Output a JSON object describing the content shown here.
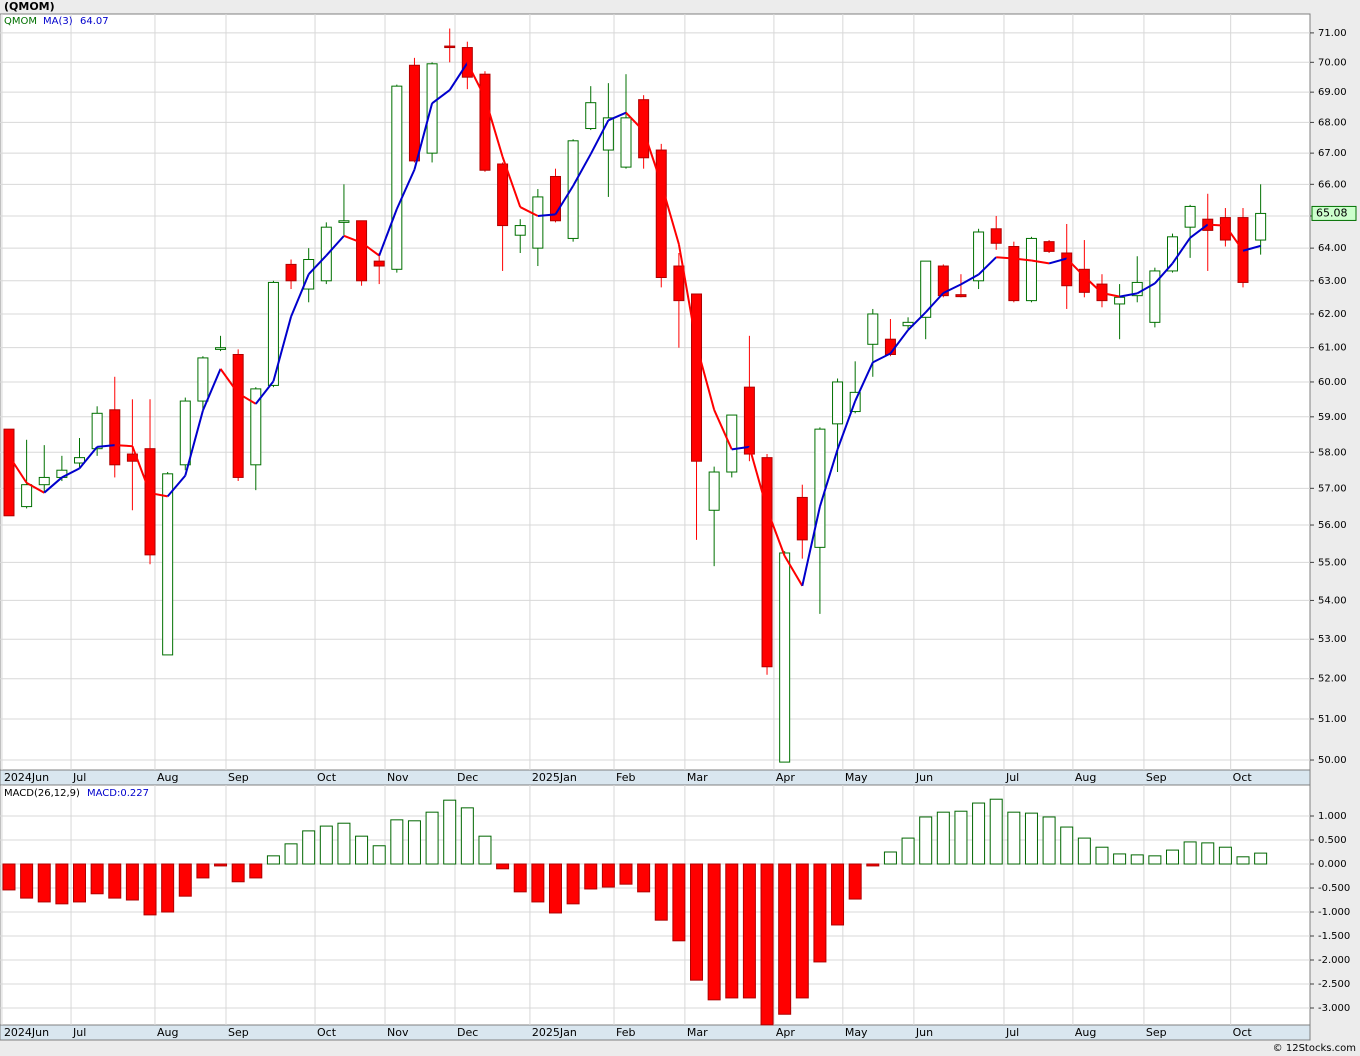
{
  "chart_data": [
    {
      "type": "candlestick",
      "title": "(QMOM)",
      "log_scale": true,
      "grid": true,
      "xlim": [
        -0.51,
        73.8
      ],
      "ylim": [
        49.76,
        71.65
      ],
      "yticks": [
        {
          "value": 50,
          "label": "50.00"
        },
        {
          "value": 51,
          "label": "51.00"
        },
        {
          "value": 52,
          "label": "52.00"
        },
        {
          "value": 53,
          "label": "53.00"
        },
        {
          "value": 54,
          "label": "54.00"
        },
        {
          "value": 55,
          "label": "55.00"
        },
        {
          "value": 56,
          "label": "56.00"
        },
        {
          "value": 57,
          "label": "57.00"
        },
        {
          "value": 58,
          "label": "58.00"
        },
        {
          "value": 59,
          "label": "59.00"
        },
        {
          "value": 60,
          "label": "60.00"
        },
        {
          "value": 61,
          "label": "61.00"
        },
        {
          "value": 62,
          "label": "62.00"
        },
        {
          "value": 63,
          "label": "63.00"
        },
        {
          "value": 64,
          "label": "64.00"
        },
        {
          "value": 65,
          "label": "65.00"
        },
        {
          "value": 66,
          "label": "66.00"
        },
        {
          "value": 67,
          "label": "67.00"
        },
        {
          "value": 68,
          "label": "68.00"
        },
        {
          "value": 69,
          "label": "69.00"
        },
        {
          "value": 70,
          "label": "70.00"
        },
        {
          "value": 71,
          "label": "71.00"
        }
      ],
      "xticks": [
        {
          "value": -0.4,
          "label": "2024Jun"
        },
        {
          "value": 3.52,
          "label": "Jul"
        },
        {
          "value": 8.28,
          "label": "Aug"
        },
        {
          "value": 12.31,
          "label": "Sep"
        },
        {
          "value": 17.36,
          "label": "Oct"
        },
        {
          "value": 21.33,
          "label": "Nov"
        },
        {
          "value": 25.3,
          "label": "Dec"
        },
        {
          "value": 29.55,
          "label": "2025Jan"
        },
        {
          "value": 34.32,
          "label": "Feb"
        },
        {
          "value": 38.34,
          "label": "Mar"
        },
        {
          "value": 43.39,
          "label": "Apr"
        },
        {
          "value": 47.3,
          "label": "May"
        },
        {
          "value": 51.33,
          "label": "Jun"
        },
        {
          "value": 56.44,
          "label": "Jul"
        },
        {
          "value": 60.35,
          "label": "Aug"
        },
        {
          "value": 64.38,
          "label": "Sep"
        },
        {
          "value": 69.3,
          "label": "Oct"
        }
      ],
      "series": [
        {
          "name": "QMOM",
          "color": "#007000",
          "down_color": "#ff0000",
          "open": [
            58.65,
            56.5,
            57.1,
            57.3,
            57.7,
            58.1,
            59.2,
            57.95,
            58.1,
            52.6,
            57.65,
            59.45,
            60.95,
            60.8,
            57.65,
            59.9,
            63.5,
            62.75,
            63.0,
            64.8,
            64.85,
            63.6,
            63.35,
            69.9,
            67.0,
            70.55,
            70.5,
            69.6,
            66.65,
            64.4,
            64.0,
            66.25,
            64.3,
            67.8,
            67.1,
            66.55,
            68.75,
            67.1,
            63.45,
            62.6,
            56.4,
            57.45,
            59.85,
            57.85,
            49.95,
            56.75,
            55.4,
            58.8,
            59.15,
            61.1,
            61.25,
            61.65,
            61.9,
            63.45,
            62.58,
            63.0,
            64.6,
            64.05,
            62.4,
            64.2,
            63.85,
            63.35,
            62.9,
            62.3,
            62.55,
            61.75,
            63.3,
            64.65,
            64.9,
            64.95,
            64.95,
            64.25
          ],
          "high": [
            58.65,
            58.35,
            58.2,
            57.9,
            58.4,
            59.3,
            60.15,
            59.5,
            59.5,
            57.45,
            59.55,
            60.75,
            61.35,
            60.95,
            59.85,
            63.0,
            63.65,
            64.0,
            64.8,
            66.0,
            64.85,
            63.85,
            69.25,
            70.15,
            70.0,
            71.15,
            70.7,
            69.7,
            66.7,
            64.9,
            65.85,
            66.5,
            67.45,
            69.2,
            69.3,
            69.6,
            68.9,
            67.3,
            63.85,
            62.6,
            57.6,
            59.05,
            61.35,
            57.95,
            55.3,
            57.1,
            58.7,
            60.1,
            60.6,
            62.15,
            61.85,
            61.9,
            63.6,
            63.5,
            63.2,
            64.6,
            65.0,
            64.2,
            64.35,
            64.25,
            64.75,
            64.25,
            63.2,
            62.9,
            63.75,
            63.4,
            64.45,
            65.35,
            65.7,
            65.25,
            65.25,
            66.0
          ],
          "low": [
            56.25,
            56.45,
            56.9,
            57.2,
            57.55,
            57.9,
            57.3,
            56.4,
            54.95,
            52.6,
            57.5,
            59.2,
            60.9,
            57.2,
            56.95,
            59.85,
            62.75,
            62.35,
            62.9,
            64.4,
            62.85,
            62.9,
            63.25,
            66.7,
            66.7,
            70.0,
            69.1,
            66.4,
            63.3,
            63.85,
            63.45,
            64.8,
            64.2,
            67.75,
            65.6,
            66.5,
            66.5,
            62.8,
            61.0,
            55.6,
            54.9,
            57.3,
            57.75,
            52.1,
            49.95,
            55.1,
            53.65,
            57.45,
            59.1,
            60.15,
            60.75,
            61.55,
            61.25,
            62.5,
            62.5,
            62.75,
            63.95,
            62.35,
            62.35,
            63.85,
            62.15,
            62.5,
            62.2,
            61.25,
            62.35,
            61.6,
            63.25,
            63.7,
            63.3,
            64.05,
            62.8,
            63.8
          ],
          "close": [
            56.25,
            57.1,
            57.3,
            57.5,
            57.85,
            59.1,
            57.65,
            57.75,
            55.2,
            57.4,
            59.45,
            60.7,
            61.0,
            57.3,
            59.8,
            62.95,
            63.0,
            63.65,
            64.65,
            64.85,
            63.0,
            63.45,
            69.2,
            66.75,
            69.95,
            70.5,
            69.5,
            66.45,
            64.7,
            64.7,
            65.6,
            64.85,
            67.4,
            68.65,
            68.15,
            68.15,
            66.85,
            63.1,
            62.4,
            57.75,
            57.45,
            59.05,
            57.95,
            52.3,
            55.25,
            55.6,
            58.65,
            60.0,
            59.7,
            62.0,
            60.8,
            61.75,
            63.6,
            62.55,
            62.52,
            64.5,
            64.15,
            62.4,
            64.3,
            63.9,
            62.85,
            62.65,
            62.4,
            62.5,
            62.95,
            63.3,
            64.35,
            65.3,
            64.55,
            64.25,
            62.95,
            65.08
          ]
        },
        {
          "name": "MA(3)",
          "type": "line",
          "color": "#0000cc",
          "down_color": "#ff0000",
          "values": [
            57.9,
            57.15,
            56.88,
            57.3,
            57.55,
            58.15,
            58.2,
            58.17,
            56.87,
            56.78,
            57.35,
            59.18,
            60.38,
            59.67,
            59.37,
            60.02,
            61.92,
            63.2,
            63.77,
            64.38,
            64.17,
            63.77,
            65.22,
            66.47,
            68.63,
            69.07,
            69.98,
            68.82,
            66.88,
            65.28,
            65.0,
            65.05,
            65.95,
            66.97,
            68.07,
            68.32,
            67.72,
            66.03,
            64.12,
            61.08,
            59.2,
            58.08,
            58.15,
            56.43,
            55.17,
            54.38,
            56.5,
            58.08,
            59.45,
            60.57,
            60.83,
            61.52,
            62.05,
            62.63,
            62.89,
            63.19,
            63.72,
            63.68,
            63.62,
            63.53,
            63.68,
            63.13,
            62.63,
            62.52,
            62.62,
            62.92,
            63.53,
            64.32,
            64.73,
            64.7,
            63.92,
            64.07
          ]
        }
      ]
    },
    {
      "type": "bar",
      "title": "MACD(26,12,9)",
      "value_text": "MACD:0.227",
      "grid": true,
      "color": "#006600",
      "down_color": "#ff0000",
      "xlim": [
        -0.51,
        73.8
      ],
      "ylim": [
        -3.354,
        1.646
      ],
      "yticks": [
        {
          "value": 1,
          "label": "1.000"
        },
        {
          "value": 0.5,
          "label": "0.500"
        },
        {
          "value": 0,
          "label": "0.000"
        },
        {
          "value": -0.5,
          "label": "-0.500"
        },
        {
          "value": -1,
          "label": "-1.000"
        },
        {
          "value": -1.5,
          "label": "-1.500"
        },
        {
          "value": -2,
          "label": "-2.000"
        },
        {
          "value": -2.5,
          "label": "-2.500"
        },
        {
          "value": -3,
          "label": "-3.000"
        }
      ],
      "xticks": [
        {
          "value": -0.4,
          "label": "2024Jun"
        },
        {
          "value": 3.52,
          "label": "Jul"
        },
        {
          "value": 8.28,
          "label": "Aug"
        },
        {
          "value": 12.31,
          "label": "Sep"
        },
        {
          "value": 17.36,
          "label": "Oct"
        },
        {
          "value": 21.33,
          "label": "Nov"
        },
        {
          "value": 25.3,
          "label": "Dec"
        },
        {
          "value": 29.55,
          "label": "2025Jan"
        },
        {
          "value": 34.32,
          "label": "Feb"
        },
        {
          "value": 38.34,
          "label": "Mar"
        },
        {
          "value": 43.39,
          "label": "Apr"
        },
        {
          "value": 47.3,
          "label": "May"
        },
        {
          "value": 51.33,
          "label": "Jun"
        },
        {
          "value": 56.44,
          "label": "Jul"
        },
        {
          "value": 60.35,
          "label": "Aug"
        },
        {
          "value": 64.38,
          "label": "Sep"
        },
        {
          "value": 69.3,
          "label": "Oct"
        }
      ],
      "values": [
        -0.54,
        -0.71,
        -0.79,
        -0.83,
        -0.79,
        -0.62,
        -0.71,
        -0.75,
        -1.06,
        -1.0,
        -0.67,
        -0.29,
        -0.04,
        -0.37,
        -0.29,
        0.17,
        0.42,
        0.69,
        0.79,
        0.85,
        0.58,
        0.38,
        0.92,
        0.9,
        1.08,
        1.33,
        1.17,
        0.58,
        -0.1,
        -0.58,
        -0.79,
        -1.02,
        -0.83,
        -0.52,
        -0.48,
        -0.42,
        -0.58,
        -1.17,
        -1.6,
        -2.42,
        -2.83,
        -2.79,
        -2.79,
        -3.35,
        -3.13,
        -2.79,
        -2.04,
        -1.27,
        -0.73,
        -0.04,
        0.25,
        0.54,
        0.98,
        1.08,
        1.1,
        1.27,
        1.35,
        1.08,
        1.06,
        0.98,
        0.77,
        0.54,
        0.35,
        0.21,
        0.19,
        0.17,
        0.29,
        0.46,
        0.44,
        0.35,
        0.15,
        0.227
      ]
    }
  ],
  "copyright": "© 12Stocks.com"
}
